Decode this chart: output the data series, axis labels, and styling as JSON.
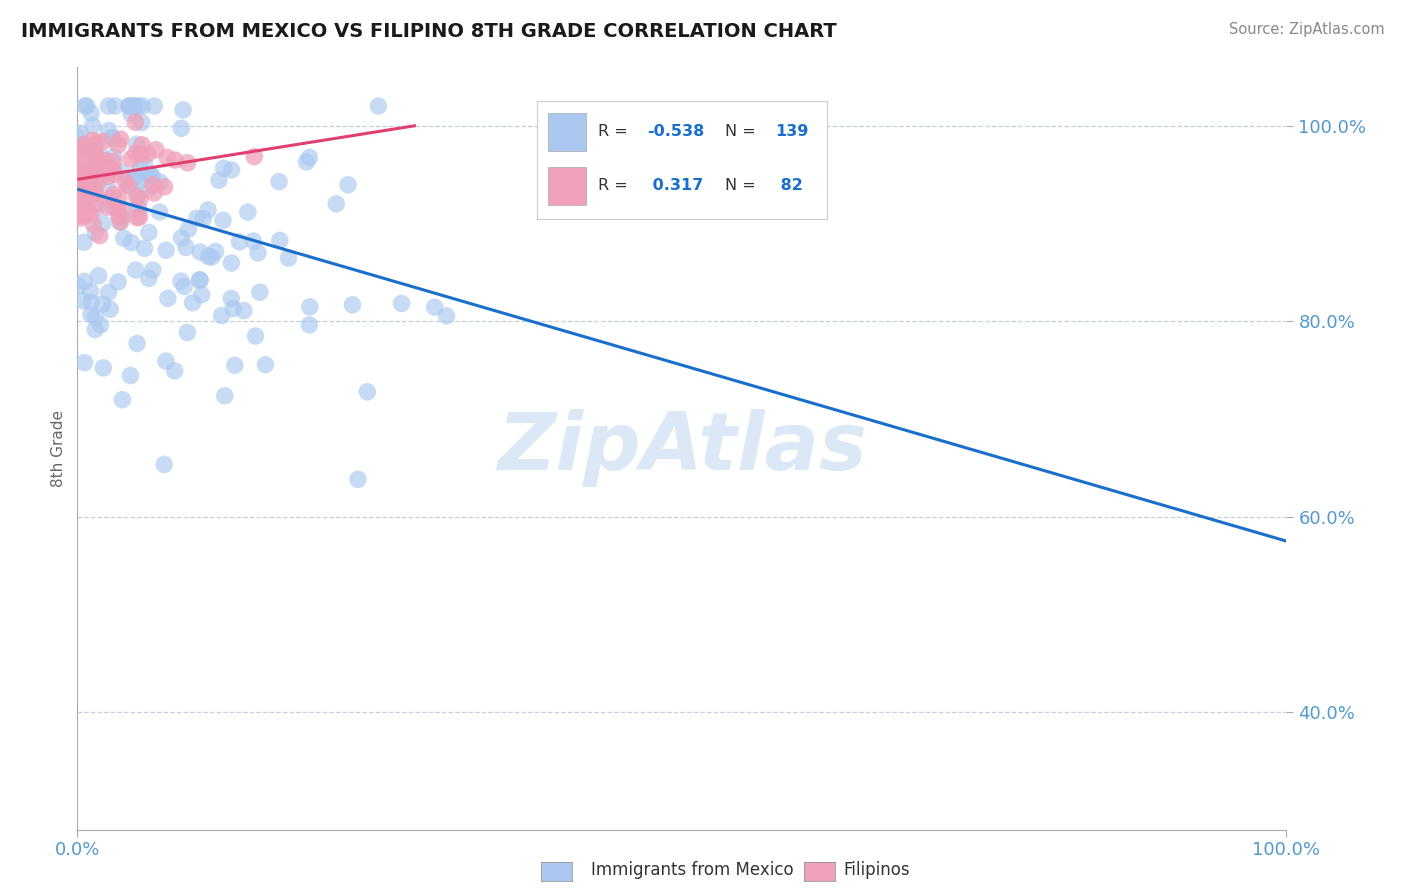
{
  "title": "IMMIGRANTS FROM MEXICO VS FILIPINO 8TH GRADE CORRELATION CHART",
  "source_text": "Source: ZipAtlas.com",
  "ylabel": "8th Grade",
  "xlim": [
    0.0,
    1.0
  ],
  "ylim": [
    0.28,
    1.06
  ],
  "blue_R": -0.538,
  "blue_N": 139,
  "pink_R": 0.317,
  "pink_N": 82,
  "blue_color": "#aac8f0",
  "blue_line_color": "#1a6fcc",
  "pink_color": "#f0a0b8",
  "pink_line_color": "#e04070",
  "yticks": [
    0.4,
    0.6,
    0.8,
    1.0
  ],
  "ytick_labels": [
    "40.0%",
    "60.0%",
    "80.0%",
    "100.0%"
  ],
  "xtick_labels": [
    "0.0%",
    "100.0%"
  ],
  "background_color": "#ffffff",
  "grid_color": "#c8d0dc",
  "watermark": "ZipAtlas",
  "legend_label_blue": "Immigrants from Mexico",
  "legend_label_pink": "Filipinos",
  "blue_trend_x": [
    0.0,
    1.0
  ],
  "blue_trend_y": [
    0.935,
    0.575
  ],
  "pink_trend_x": [
    0.0,
    0.28
  ],
  "pink_trend_y": [
    0.945,
    1.0
  ],
  "tick_color": "#5599cc",
  "axis_label_color": "#666666"
}
